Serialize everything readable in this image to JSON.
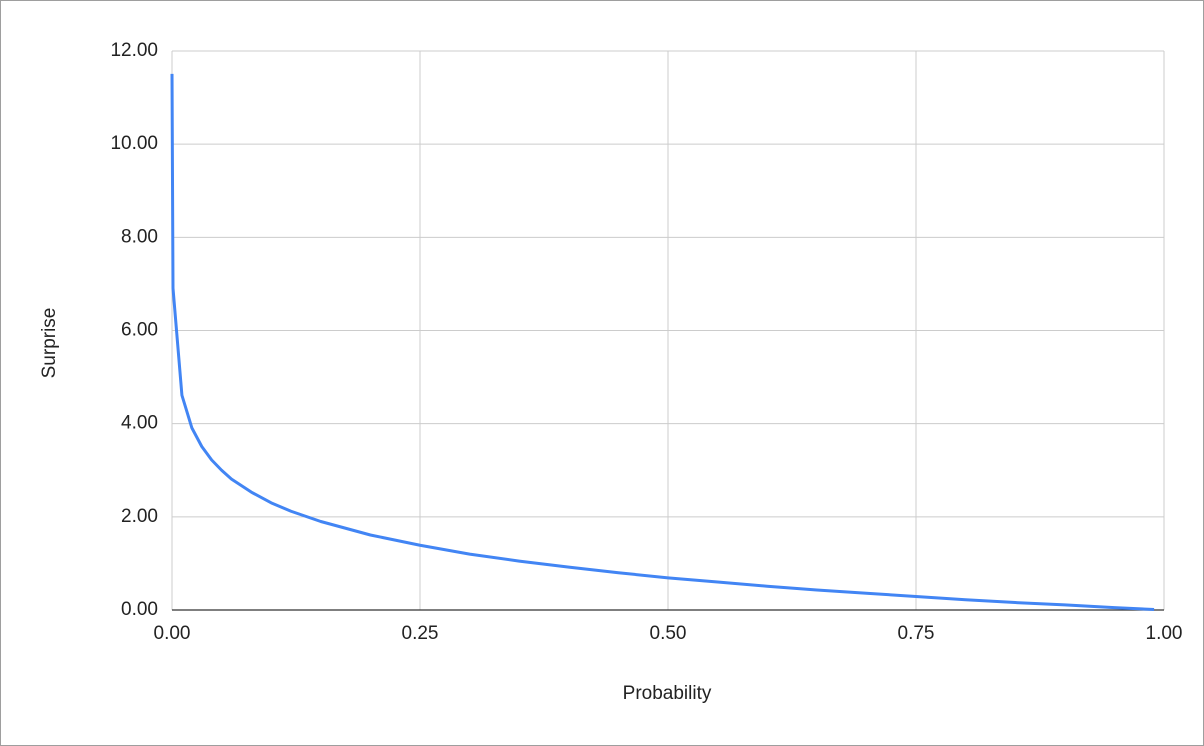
{
  "chart_data": {
    "type": "line",
    "x_label": "Probability",
    "y_label": "Surprise",
    "x": [
      1e-05,
      0.001,
      0.01,
      0.02,
      0.03,
      0.04,
      0.05,
      0.06,
      0.08,
      0.1,
      0.12,
      0.15,
      0.2,
      0.25,
      0.3,
      0.35,
      0.4,
      0.45,
      0.5,
      0.55,
      0.6,
      0.65,
      0.7,
      0.75,
      0.8,
      0.85,
      0.9,
      0.95,
      0.99
    ],
    "series": [
      {
        "color": "#4285f4",
        "values": [
          11.51,
          6.91,
          4.61,
          3.91,
          3.51,
          3.22,
          3.0,
          2.81,
          2.53,
          2.3,
          2.12,
          1.9,
          1.61,
          1.39,
          1.2,
          1.05,
          0.92,
          0.8,
          0.69,
          0.6,
          0.51,
          0.43,
          0.36,
          0.29,
          0.22,
          0.16,
          0.11,
          0.05,
          0.01
        ]
      }
    ],
    "xlim": [
      0,
      1
    ],
    "ylim": [
      0,
      12
    ],
    "xticks": [
      {
        "value": 0,
        "label": "0.00"
      },
      {
        "value": 0.25,
        "label": "0.25"
      },
      {
        "value": 0.5,
        "label": "0.50"
      },
      {
        "value": 0.75,
        "label": "0.75"
      },
      {
        "value": 1,
        "label": "1.00"
      }
    ],
    "yticks": [
      {
        "value": 0,
        "label": "0.00"
      },
      {
        "value": 2,
        "label": "2.00"
      },
      {
        "value": 4,
        "label": "4.00"
      },
      {
        "value": 6,
        "label": "6.00"
      },
      {
        "value": 8,
        "label": "8.00"
      },
      {
        "value": 10,
        "label": "10.00"
      },
      {
        "value": 12,
        "label": "12.00"
      }
    ],
    "grid": true
  }
}
